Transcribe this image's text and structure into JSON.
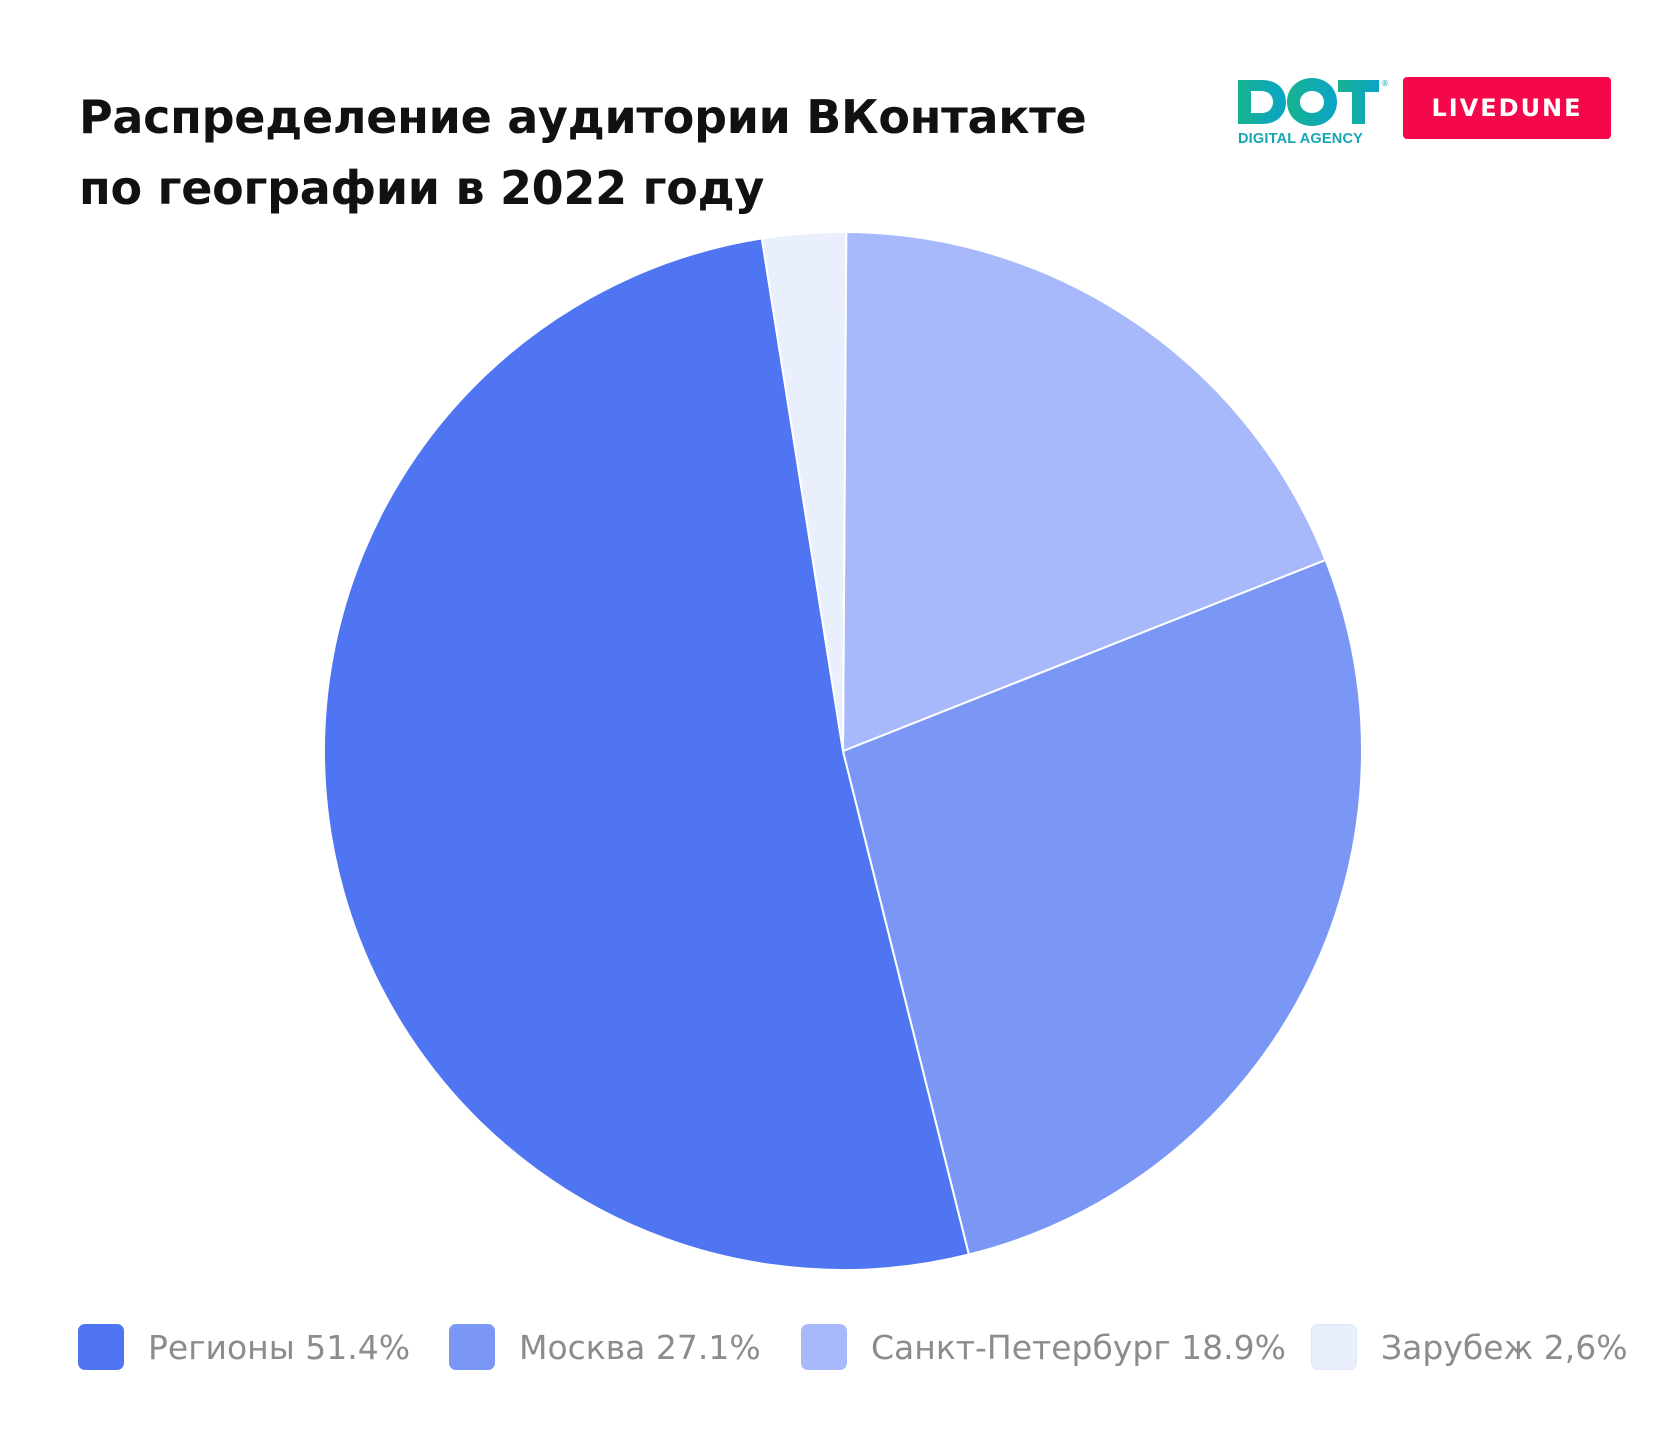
{
  "title": {
    "line1": "Распределение аудитории ВКонтакте",
    "line2": "по географии в 2022 году"
  },
  "logos": {
    "dot": {
      "text": "DOT",
      "subtitle": "DIGITAL AGENCY",
      "mark": "®"
    },
    "livedune": {
      "text": "LIVEDUNE",
      "color": "#f5074b"
    }
  },
  "chart_data": {
    "type": "pie",
    "start_angle_deg": -9,
    "direction": "counterclockwise",
    "slices": [
      {
        "label": "Регионы 51.4%",
        "name": "Регионы",
        "value": 51.4,
        "color": "#5075f3"
      },
      {
        "label": "Москва 27.1%",
        "name": "Москва",
        "value": 27.1,
        "color": "#7b97f6"
      },
      {
        "label": "Санкт-Петербург 18.9%",
        "name": "Санкт-Петербург",
        "value": 18.9,
        "color": "#a7b9fa"
      },
      {
        "label": "Зарубеж 2,6%",
        "name": "Зарубеж",
        "value": 2.6,
        "color": "#eaeffd"
      }
    ],
    "legend_position": "bottom"
  }
}
